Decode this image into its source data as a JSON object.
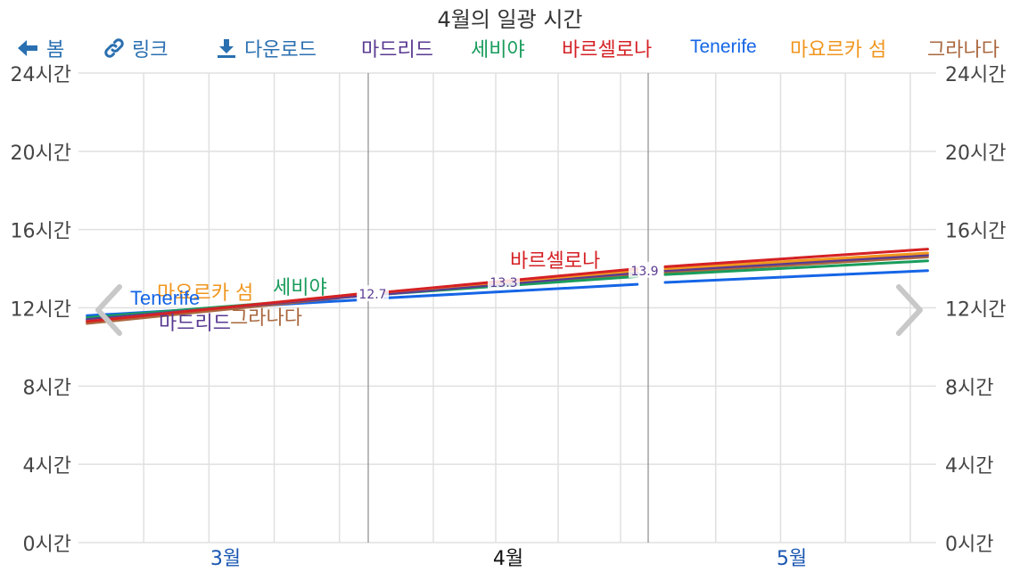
{
  "title": "4월의 일광 시간",
  "toolbar": {
    "back": {
      "label": "봄",
      "icon": "arrow-left-icon"
    },
    "link": {
      "label": "링크",
      "icon": "link-icon"
    },
    "download": {
      "label": "다운로드",
      "icon": "download-icon"
    }
  },
  "nav": {
    "prev_icon": "chevron-left-icon",
    "next_icon": "chevron-right-icon"
  },
  "colors": {
    "madrid": "#5a3a92",
    "seville": "#199c5c",
    "barcelona": "#d42125",
    "tenerife": "#1565e6",
    "mallorca": "#f0961e",
    "granada": "#a9673e",
    "grid": "#e0e0e0",
    "divider": "#8c8c8c"
  },
  "chart_data": {
    "type": "line",
    "title": "4월의 일광 시간",
    "ylim": [
      0,
      24
    ],
    "y_ticks": [
      "0시간",
      "4시간",
      "8시간",
      "12시간",
      "16시간",
      "20시간",
      "24시간"
    ],
    "y_tick_values": [
      0,
      4,
      8,
      12,
      16,
      20,
      24
    ],
    "x_labels": [
      "3월",
      "4월",
      "5월"
    ],
    "active_month": "4월",
    "grid": true,
    "legend_position": "top",
    "series": [
      {
        "name": "마드리드",
        "color": "#5a3a92",
        "segments": [
          {
            "month": "3월",
            "start": 11.4,
            "end": 12.6
          },
          {
            "month": "4월",
            "start": 12.7,
            "end": 13.8
          },
          {
            "month": "5월",
            "start": 13.9,
            "end": 14.7
          }
        ]
      },
      {
        "name": "세비야",
        "color": "#199c5c",
        "segments": [
          {
            "month": "3월",
            "start": 11.5,
            "end": 12.6
          },
          {
            "month": "4월",
            "start": 12.7,
            "end": 13.6
          },
          {
            "month": "5월",
            "start": 13.7,
            "end": 14.4
          }
        ]
      },
      {
        "name": "바르셀로나",
        "color": "#d42125",
        "segments": [
          {
            "month": "3월",
            "start": 11.3,
            "end": 12.7
          },
          {
            "month": "4월",
            "start": 12.8,
            "end": 14.0
          },
          {
            "month": "5월",
            "start": 14.1,
            "end": 15.0
          }
        ]
      },
      {
        "name": "Tenerife",
        "color": "#1565e6",
        "segments": [
          {
            "month": "3월",
            "start": 11.6,
            "end": 12.4
          },
          {
            "month": "4월",
            "start": 12.5,
            "end": 13.2
          },
          {
            "month": "5월",
            "start": 13.3,
            "end": 13.9
          }
        ]
      },
      {
        "name": "마요르카 섬",
        "color": "#f0961e",
        "segments": [
          {
            "month": "3월",
            "start": 11.3,
            "end": 12.7
          },
          {
            "month": "4월",
            "start": 12.8,
            "end": 13.9
          },
          {
            "month": "5월",
            "start": 14.0,
            "end": 14.8
          }
        ]
      },
      {
        "name": "그라나다",
        "color": "#a9673e",
        "segments": [
          {
            "month": "3월",
            "start": 11.2,
            "end": 12.6
          },
          {
            "month": "4월",
            "start": 12.7,
            "end": 13.7
          },
          {
            "month": "5월",
            "start": 13.8,
            "end": 14.6
          }
        ]
      }
    ],
    "data_labels": [
      {
        "series": "마드리드",
        "value": "12.7"
      },
      {
        "series": "마드리드",
        "value": "13.3"
      },
      {
        "series": "마드리드",
        "value": "13.9"
      }
    ],
    "annotations": [
      "마요르카 섬",
      "세비야",
      "Tenerife",
      "마드리드",
      "그라나다",
      "바르셀로나"
    ]
  }
}
